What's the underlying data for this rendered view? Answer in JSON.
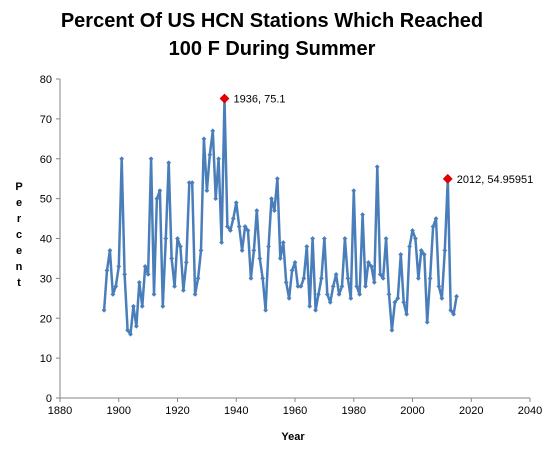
{
  "chart_data": {
    "type": "line",
    "title_line1": "Percent Of US HCN Stations Which Reached",
    "title_line2": "100 F During Summer",
    "xlabel": "Year",
    "ylabel": "Percent",
    "xlim": [
      1880,
      2040
    ],
    "ylim": [
      0,
      80
    ],
    "x_ticks": [
      "1880",
      "1900",
      "1920",
      "1940",
      "1960",
      "1980",
      "2000",
      "2020",
      "2040"
    ],
    "y_ticks": [
      "0",
      "10",
      "20",
      "30",
      "40",
      "50",
      "60",
      "70",
      "80"
    ],
    "grid": false,
    "legend": "none",
    "colors": {
      "line": "#4a7ebb",
      "highlight": "#e00000"
    },
    "series": [
      {
        "x": [
          1895,
          1896,
          1897,
          1898,
          1899,
          1900,
          1901,
          1902,
          1903,
          1904,
          1905,
          1906,
          1907,
          1908,
          1909,
          1910,
          1911,
          1912,
          1913,
          1914,
          1915,
          1916,
          1917,
          1918,
          1919,
          1920,
          1921,
          1922,
          1923,
          1924,
          1925,
          1926,
          1927,
          1928,
          1929,
          1930,
          1931,
          1932,
          1933,
          1934,
          1935,
          1936,
          1937,
          1938,
          1939,
          1940,
          1941,
          1942,
          1943,
          1944,
          1945,
          1946,
          1947,
          1948,
          1949,
          1950,
          1951,
          1952,
          1953,
          1954,
          1955,
          1956,
          1957,
          1958,
          1959,
          1960,
          1961,
          1962,
          1963,
          1964,
          1965,
          1966,
          1967,
          1968,
          1969,
          1970,
          1971,
          1972,
          1973,
          1974,
          1975,
          1976,
          1977,
          1978,
          1979,
          1980,
          1981,
          1982,
          1983,
          1984,
          1985,
          1986,
          1987,
          1988,
          1989,
          1990,
          1991,
          1992,
          1993,
          1994,
          1995,
          1996,
          1997,
          1998,
          1999,
          2000,
          2001,
          2002,
          2003,
          2004,
          2005,
          2006,
          2007,
          2008,
          2009,
          2010,
          2011,
          2012,
          2013,
          2014,
          2015
        ],
        "y": [
          22,
          32,
          37,
          26,
          28,
          33,
          60,
          31,
          17,
          16,
          23,
          18,
          29,
          23,
          33,
          31,
          60,
          26,
          50,
          52,
          23,
          40,
          59,
          35,
          28,
          40,
          38,
          27,
          34,
          54,
          54,
          26,
          30,
          37,
          65,
          52,
          61,
          67,
          50,
          60,
          39,
          75.1,
          43,
          42,
          45,
          49,
          43,
          37,
          43,
          42,
          30,
          37,
          47,
          35,
          30,
          22,
          38,
          50,
          47,
          55,
          35,
          39,
          29,
          25,
          32,
          34,
          28,
          28,
          30,
          38,
          23,
          40,
          22,
          26,
          30,
          40,
          26,
          24,
          28,
          31,
          26,
          28,
          40,
          30,
          25,
          52,
          28,
          26,
          46,
          28,
          34,
          33,
          29,
          58,
          31,
          30,
          40,
          26,
          17,
          24,
          25,
          36,
          24,
          21,
          38,
          42,
          40,
          30,
          37,
          36,
          19,
          30,
          43,
          45,
          28,
          25,
          37,
          54.95951,
          22,
          21,
          25.5
        ]
      }
    ],
    "annotations": [
      {
        "x": 1936,
        "y": 75.1,
        "label": "1936, 75.1"
      },
      {
        "x": 2012,
        "y": 54.95951,
        "label": "2012, 54.95951"
      }
    ]
  }
}
